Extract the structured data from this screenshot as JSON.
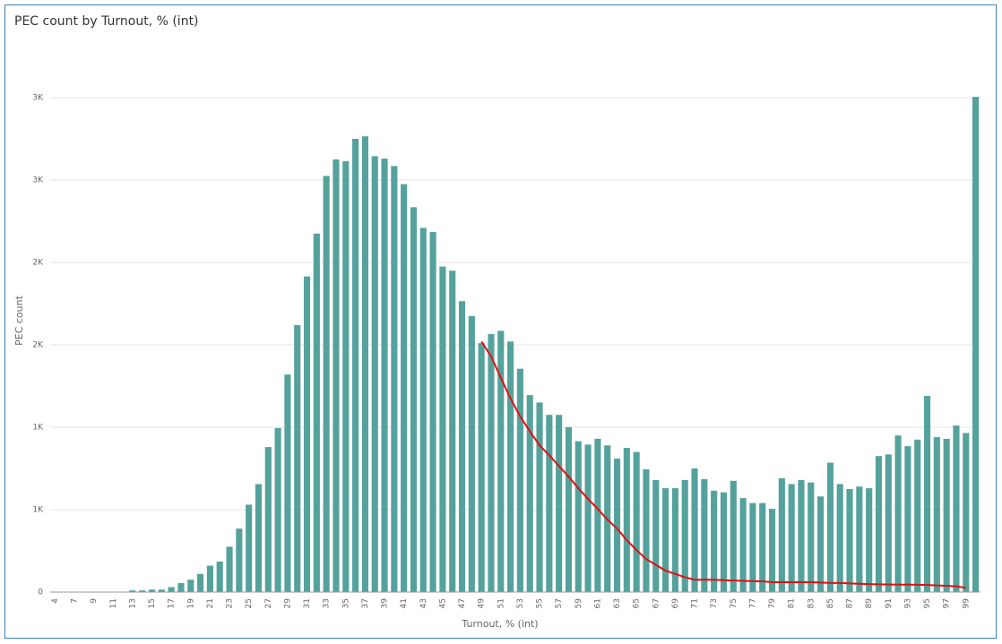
{
  "chart_data": {
    "type": "bar",
    "title": "PEC count by Turnout, % (int)",
    "x_label": "Turnout, % (int)",
    "y_label": "PEC count",
    "categories": [
      "4",
      null,
      "7",
      null,
      "9",
      null,
      "11",
      null,
      "13",
      null,
      "15",
      null,
      "17",
      null,
      "19",
      null,
      "21",
      null,
      "23",
      null,
      "25",
      null,
      "27",
      null,
      "29",
      null,
      "31",
      null,
      "33",
      null,
      "35",
      null,
      "37",
      null,
      "39",
      null,
      "41",
      null,
      "43",
      null,
      "45",
      null,
      "47",
      null,
      "49",
      null,
      "51",
      null,
      "53",
      null,
      "55",
      null,
      "57",
      null,
      "59",
      null,
      "61",
      null,
      "63",
      null,
      "65",
      null,
      "67",
      null,
      "69",
      null,
      "71",
      null,
      "73",
      null,
      "75",
      null,
      "77",
      null,
      "79",
      null,
      "81",
      null,
      "83",
      null,
      "85",
      null,
      "87",
      null,
      "89",
      null,
      "91",
      null,
      "93",
      null,
      "95",
      null,
      "97",
      null,
      "99",
      null
    ],
    "series": [
      {
        "type": "bar",
        "color": "#55a29d",
        "values": [
          0,
          0,
          0,
          0,
          0,
          0,
          0,
          0,
          10,
          10,
          15,
          15,
          30,
          55,
          75,
          110,
          160,
          185,
          275,
          385,
          530,
          655,
          880,
          995,
          1320,
          1620,
          1915,
          2175,
          2525,
          2625,
          2615,
          2750,
          2765,
          2645,
          2630,
          2585,
          2475,
          2335,
          2210,
          2185,
          1975,
          1950,
          1765,
          1675,
          1510,
          1565,
          1585,
          1520,
          1355,
          1195,
          1150,
          1075,
          1075,
          1000,
          915,
          895,
          930,
          890,
          810,
          875,
          850,
          745,
          680,
          630,
          630,
          680,
          750,
          685,
          615,
          605,
          675,
          570,
          540,
          540,
          505,
          690,
          655,
          680,
          665,
          580,
          785,
          655,
          625,
          640,
          630,
          825,
          835,
          950,
          885,
          925,
          1190,
          940,
          930,
          1010,
          965,
          3005
        ]
      },
      {
        "type": "line",
        "color": "#e01010",
        "values": [
          null,
          null,
          null,
          null,
          null,
          null,
          null,
          null,
          null,
          null,
          null,
          null,
          null,
          null,
          null,
          null,
          null,
          null,
          null,
          null,
          null,
          null,
          null,
          null,
          null,
          null,
          null,
          null,
          null,
          null,
          null,
          null,
          null,
          null,
          null,
          null,
          null,
          null,
          null,
          null,
          null,
          null,
          null,
          null,
          1520,
          1430,
          1300,
          1175,
          1065,
          975,
          890,
          830,
          765,
          700,
          630,
          565,
          505,
          440,
          385,
          315,
          255,
          200,
          165,
          130,
          110,
          90,
          75,
          75,
          75,
          72,
          70,
          68,
          66,
          65,
          60,
          60,
          60,
          60,
          60,
          58,
          55,
          55,
          52,
          50,
          48,
          47,
          46,
          45,
          45,
          44,
          43,
          40,
          38,
          35,
          25,
          null
        ]
      }
    ],
    "ylim": [
      0,
      3100
    ],
    "yticks": [
      0,
      {
        "value": 500,
        "label": "1K"
      },
      {
        "value": 1000,
        "label": "1K"
      },
      {
        "value": 1500,
        "label": "2K"
      },
      {
        "value": 2000,
        "label": "2K"
      },
      {
        "value": 2500,
        "label": "3K"
      },
      {
        "value": 3000,
        "label": "3K"
      }
    ],
    "grid": true
  }
}
